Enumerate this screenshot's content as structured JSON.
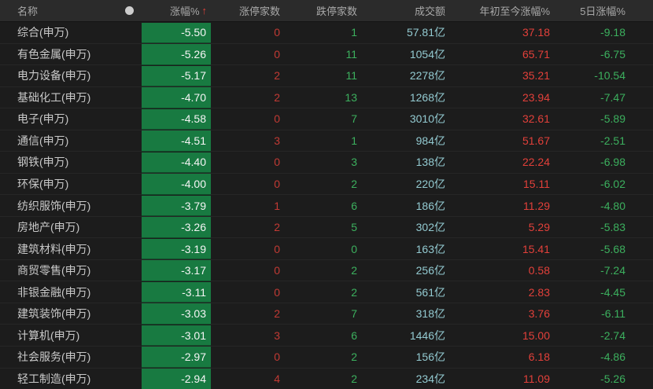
{
  "table": {
    "columns": {
      "name": "名称",
      "change": "涨幅%",
      "sort_indicator": "↑",
      "limit_up": "涨停家数",
      "limit_down": "跌停家数",
      "turnover": "成交额",
      "ytd_change": "年初至今涨幅%",
      "five_day_change": "5日涨幅%"
    },
    "rows": [
      {
        "name": "综合(申万)",
        "chg": "-5.50",
        "limit_up": "0",
        "limit_down": "1",
        "turnover": "57.81亿",
        "ytd": "37.18",
        "d5": "-9.18"
      },
      {
        "name": "有色金属(申万)",
        "chg": "-5.26",
        "limit_up": "0",
        "limit_down": "11",
        "turnover": "1054亿",
        "ytd": "65.71",
        "d5": "-6.75"
      },
      {
        "name": "电力设备(申万)",
        "chg": "-5.17",
        "limit_up": "2",
        "limit_down": "11",
        "turnover": "2278亿",
        "ytd": "35.21",
        "d5": "-10.54"
      },
      {
        "name": "基础化工(申万)",
        "chg": "-4.70",
        "limit_up": "2",
        "limit_down": "13",
        "turnover": "1268亿",
        "ytd": "23.94",
        "d5": "-7.47"
      },
      {
        "name": "电子(申万)",
        "chg": "-4.58",
        "limit_up": "0",
        "limit_down": "7",
        "turnover": "3010亿",
        "ytd": "32.61",
        "d5": "-5.89"
      },
      {
        "name": "通信(申万)",
        "chg": "-4.51",
        "limit_up": "3",
        "limit_down": "1",
        "turnover": "984亿",
        "ytd": "51.67",
        "d5": "-2.51"
      },
      {
        "name": "钢铁(申万)",
        "chg": "-4.40",
        "limit_up": "0",
        "limit_down": "3",
        "turnover": "138亿",
        "ytd": "22.24",
        "d5": "-6.98"
      },
      {
        "name": "环保(申万)",
        "chg": "-4.00",
        "limit_up": "0",
        "limit_down": "2",
        "turnover": "220亿",
        "ytd": "15.11",
        "d5": "-6.02"
      },
      {
        "name": "纺织服饰(申万)",
        "chg": "-3.79",
        "limit_up": "1",
        "limit_down": "6",
        "turnover": "186亿",
        "ytd": "11.29",
        "d5": "-4.80"
      },
      {
        "name": "房地产(申万)",
        "chg": "-3.26",
        "limit_up": "2",
        "limit_down": "5",
        "turnover": "302亿",
        "ytd": "5.29",
        "d5": "-5.83"
      },
      {
        "name": "建筑材料(申万)",
        "chg": "-3.19",
        "limit_up": "0",
        "limit_down": "0",
        "turnover": "163亿",
        "ytd": "15.41",
        "d5": "-5.68"
      },
      {
        "name": "商贸零售(申万)",
        "chg": "-3.17",
        "limit_up": "0",
        "limit_down": "2",
        "turnover": "256亿",
        "ytd": "0.58",
        "d5": "-7.24"
      },
      {
        "name": "非银金融(申万)",
        "chg": "-3.11",
        "limit_up": "0",
        "limit_down": "2",
        "turnover": "561亿",
        "ytd": "2.83",
        "d5": "-4.45"
      },
      {
        "name": "建筑装饰(申万)",
        "chg": "-3.03",
        "limit_up": "2",
        "limit_down": "7",
        "turnover": "318亿",
        "ytd": "3.76",
        "d5": "-6.11"
      },
      {
        "name": "计算机(申万)",
        "chg": "-3.01",
        "limit_up": "3",
        "limit_down": "6",
        "turnover": "1446亿",
        "ytd": "15.00",
        "d5": "-2.74"
      },
      {
        "name": "社会服务(申万)",
        "chg": "-2.97",
        "limit_up": "0",
        "limit_down": "2",
        "turnover": "156亿",
        "ytd": "6.18",
        "d5": "-4.86"
      },
      {
        "name": "轻工制造(申万)",
        "chg": "-2.94",
        "limit_up": "4",
        "limit_down": "2",
        "turnover": "234亿",
        "ytd": "11.09",
        "d5": "-5.26"
      }
    ]
  },
  "colors": {
    "green_cell": "#187a41",
    "red_strong": "#e2403a",
    "red_count": "#c23a34",
    "green_num": "#3cb05e",
    "cyan_num": "#93cad1",
    "header_text": "#a8a8a8",
    "name_text": "#c9c9c9"
  }
}
